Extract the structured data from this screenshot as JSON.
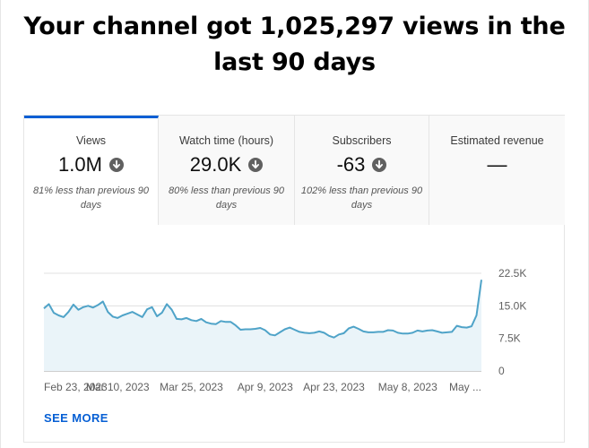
{
  "headline": "Your channel got 1,025,297 views in the last 90 days",
  "tabs": [
    {
      "title": "Views",
      "value": "1.0M",
      "trend_icon": "arrow-down-circle-icon",
      "comparison": "81% less than previous 90 days",
      "active": true
    },
    {
      "title": "Watch time (hours)",
      "value": "29.0K",
      "trend_icon": "arrow-down-circle-icon",
      "comparison": "80% less than previous 90 days",
      "active": false
    },
    {
      "title": "Subscribers",
      "value": "-63",
      "trend_icon": "arrow-down-circle-icon",
      "comparison": "102% less than previous 90 days",
      "active": false
    },
    {
      "title": "Estimated revenue",
      "value": "—",
      "comparison": "",
      "active": false
    }
  ],
  "see_more_label": "SEE MORE",
  "colors": {
    "accent": "#065fd4",
    "line": "#4fa3c8",
    "area": "#eaf4f9",
    "icon": "#606060"
  },
  "chart_data": {
    "type": "area",
    "title": "",
    "xlabel": "",
    "ylabel": "",
    "y_ticks": [
      "22.5K",
      "15.0K",
      "7.5K",
      "0"
    ],
    "y_tick_values": [
      22500,
      15000,
      7500,
      0
    ],
    "ylim": [
      0,
      22500
    ],
    "x_ticks": [
      "Feb 23, 2023",
      "Mar 10, 2023",
      "Mar 25, 2023",
      "Apr 9, 2023",
      "Apr 23, 2023",
      "May 8, 2023",
      "May ..."
    ],
    "x_tick_days": [
      0,
      15,
      30,
      45,
      59,
      74,
      89
    ],
    "grid": true,
    "series": [
      {
        "values": [
          14400,
          15400,
          13400,
          12800,
          12400,
          13600,
          15300,
          14100,
          14700,
          15000,
          14600,
          15200,
          16000,
          13600,
          12500,
          12200,
          12800,
          13200,
          13600,
          13000,
          12400,
          14200,
          14700,
          12600,
          13400,
          15400,
          14100,
          12000,
          11900,
          12200,
          11700,
          11500,
          12000,
          11200,
          10900,
          10800,
          11500,
          11300,
          11300,
          10500,
          9500,
          9600,
          9600,
          9700,
          9900,
          9400,
          8400,
          8200,
          8900,
          9600,
          10000,
          9500,
          9000,
          8800,
          8700,
          8800,
          9100,
          8800,
          8100,
          7700,
          8400,
          8700,
          9800,
          10200,
          9700,
          9100,
          8900,
          8900,
          9000,
          9000,
          9400,
          9300,
          8800,
          8600,
          8600,
          8800,
          9300,
          9100,
          9300,
          9400,
          9100,
          8800,
          8900,
          9000,
          10400,
          10100,
          10000,
          10300,
          12800,
          21000
        ]
      }
    ]
  }
}
